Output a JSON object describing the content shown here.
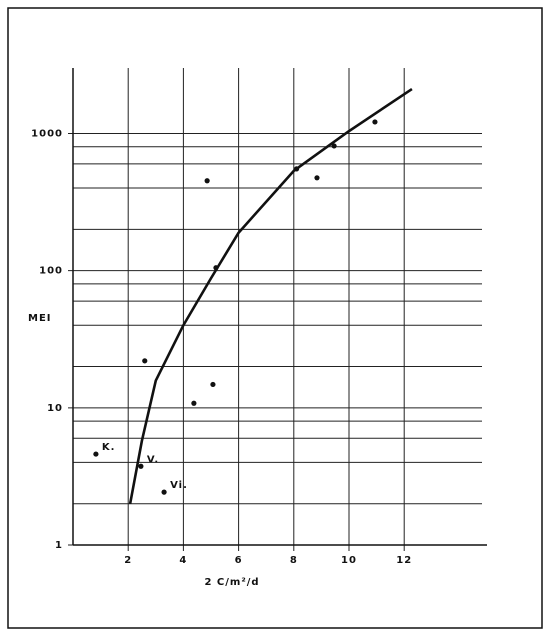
{
  "chart_data": {
    "type": "scatter",
    "x_label": "2 C/m²/d",
    "y_label": "MEI",
    "xlim": [
      0,
      15
    ],
    "ylim": [
      1,
      3000
    ],
    "log_y": true,
    "grid": true,
    "color": "#111111",
    "xticks": [
      2,
      4,
      6,
      8,
      10,
      12
    ],
    "yticks": [
      1,
      10,
      100,
      1000
    ],
    "y_minor_grid": [
      2,
      4,
      6,
      8,
      20,
      40,
      60,
      80,
      200,
      400,
      600,
      800
    ],
    "series": [
      {
        "type": "scatter",
        "x": [
          0.83,
          2.46,
          3.3,
          2.6,
          4.38,
          5.07,
          4.86,
          5.18,
          8.1,
          8.84,
          9.46,
          10.94
        ],
        "values": [
          4.6,
          3.75,
          2.43,
          22,
          10.8,
          14.8,
          452,
          105,
          552,
          475,
          811,
          1213
        ],
        "point_labels": [
          "K.",
          "V.",
          "Vi.",
          null,
          null,
          null,
          null,
          null,
          null,
          null,
          null,
          null
        ]
      },
      {
        "type": "line",
        "x": [
          2.07,
          2.5,
          3,
          4,
          5,
          6,
          8,
          10,
          12.28
        ],
        "values": [
          2,
          5.8,
          15.8,
          40,
          88,
          189,
          534,
          1040,
          2108
        ]
      }
    ]
  }
}
